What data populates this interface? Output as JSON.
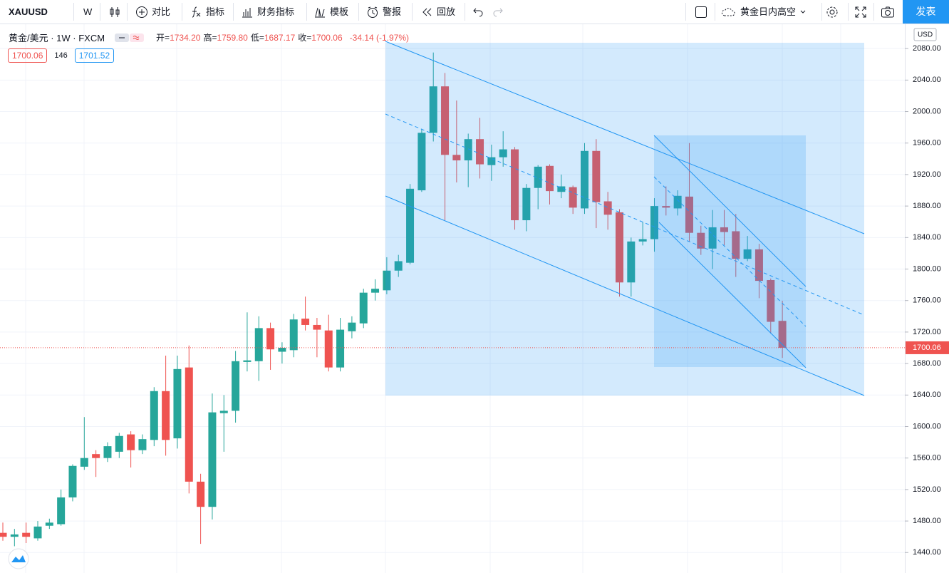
{
  "toolbar": {
    "symbol": "XAUUSD",
    "interval": "W",
    "items": [
      "对比",
      "指标",
      "财务指标",
      "模板",
      "警报",
      "回放"
    ],
    "layout_name": "黄金日内高空",
    "publish": "发表"
  },
  "legend": {
    "title": "黄金/美元 · 1W · FXCM",
    "ohlc": [
      {
        "label": "开=",
        "value": "1734.20"
      },
      {
        "label": "高=",
        "value": "1759.80"
      },
      {
        "label": "低=",
        "value": "1687.17"
      },
      {
        "label": "收=",
        "value": "1700.06"
      }
    ],
    "change": "-34.14 (-1.97%)"
  },
  "badges": {
    "bid": "1700.06",
    "spread": "146",
    "ask": "1701.52"
  },
  "chart_data": {
    "type": "candlestick",
    "currency": "USD",
    "open": [
      1465,
      1460,
      1465,
      1458,
      1474,
      1476,
      1510,
      1549,
      1565,
      1560,
      1568,
      1590,
      1570,
      1583,
      1645,
      1585,
      1675,
      1530,
      1498,
      1617,
      1620,
      1682,
      1683,
      1725,
      1695,
      1697,
      1737,
      1729,
      1722,
      1675,
      1721,
      1731,
      1770,
      1773,
      1798,
      1808,
      1900,
      1973,
      2032,
      1945,
      1938,
      1965,
      1932,
      1942,
      1952,
      1862,
      1903,
      1931,
      1898,
      1904,
      1877,
      1950,
      1886,
      1872,
      1783,
      1835,
      1838,
      1880,
      1877,
      1892,
      1846,
      1826,
      1853,
      1848,
      1813,
      1825,
      1786,
      1734.2
    ],
    "high": [
      1478,
      1470,
      1478,
      1480,
      1483,
      1520,
      1552,
      1612,
      1570,
      1580,
      1592,
      1594,
      1590,
      1650,
      1690,
      1690,
      1703,
      1540,
      1642,
      1640,
      1696,
      1745,
      1740,
      1732,
      1707,
      1743,
      1765,
      1738,
      1742,
      1738,
      1740,
      1775,
      1787,
      1815,
      1818,
      1908,
      1978,
      2075,
      2049,
      2014,
      1972,
      1992,
      1958,
      1975,
      1955,
      1908,
      1932,
      1933,
      1920,
      1906,
      1960,
      1965,
      1898,
      1876,
      1840,
      1860,
      1890,
      1905,
      1900,
      1960,
      1855,
      1875,
      1875,
      1870,
      1842,
      1832,
      1788,
      1759.8
    ],
    "low": [
      1455,
      1448,
      1452,
      1455,
      1470,
      1474,
      1505,
      1545,
      1536,
      1555,
      1560,
      1548,
      1565,
      1575,
      1563,
      1572,
      1515,
      1451,
      1482,
      1568,
      1605,
      1670,
      1658,
      1672,
      1680,
      1688,
      1722,
      1688,
      1670,
      1670,
      1712,
      1725,
      1760,
      1768,
      1790,
      1806,
      1898,
      1962,
      1862,
      1910,
      1904,
      1915,
      1912,
      1930,
      1850,
      1848,
      1876,
      1882,
      1890,
      1870,
      1870,
      1852,
      1850,
      1765,
      1765,
      1830,
      1822,
      1868,
      1868,
      1835,
      1818,
      1800,
      1830,
      1790,
      1810,
      1763,
      1718,
      1687.17
    ],
    "close": [
      1460,
      1463,
      1460,
      1473,
      1478,
      1510,
      1550,
      1560,
      1560,
      1575,
      1588,
      1570,
      1584,
      1645,
      1583,
      1673,
      1530,
      1498,
      1618,
      1620,
      1683,
      1684,
      1725,
      1698,
      1700,
      1736,
      1729,
      1723,
      1675,
      1723,
      1732,
      1770,
      1775,
      1798,
      1810,
      1902,
      1973,
      2032,
      1945,
      1938,
      1965,
      1933,
      1942,
      1952,
      1862,
      1903,
      1930,
      1899,
      1905,
      1878,
      1950,
      1885,
      1869,
      1783,
      1835,
      1838,
      1880,
      1878,
      1893,
      1846,
      1826,
      1853,
      1847,
      1813,
      1825,
      1785,
      1733,
      1700.06
    ],
    "up_color": "#26a69a",
    "down_color": "#ef5350",
    "ylim": [
      1414,
      2110
    ],
    "yticks": [
      {
        "value": 1440,
        "label": "1440.00"
      },
      {
        "value": 1480,
        "label": "1480.00"
      },
      {
        "value": 1520,
        "label": "1520.00"
      },
      {
        "value": 1560,
        "label": "1560.00"
      },
      {
        "value": 1600,
        "label": "1600.00"
      },
      {
        "value": 1640,
        "label": "1640.00"
      },
      {
        "value": 1680,
        "label": "1680.00"
      },
      {
        "value": 1720,
        "label": "1720.00"
      },
      {
        "value": 1760,
        "label": "1760.00"
      },
      {
        "value": 1800,
        "label": "1800.00"
      },
      {
        "value": 1840,
        "label": "1840.00"
      },
      {
        "value": 1880,
        "label": "1880.00"
      },
      {
        "value": 1920,
        "label": "1920.00"
      },
      {
        "value": 1960,
        "label": "1960.00"
      },
      {
        "value": 2000,
        "label": "2000.00"
      },
      {
        "value": 2040,
        "label": "2040.00"
      },
      {
        "value": 2080,
        "label": "2080.00"
      }
    ],
    "last_price": 1700.06,
    "last_price_color": "#ef5350",
    "grid": true
  }
}
